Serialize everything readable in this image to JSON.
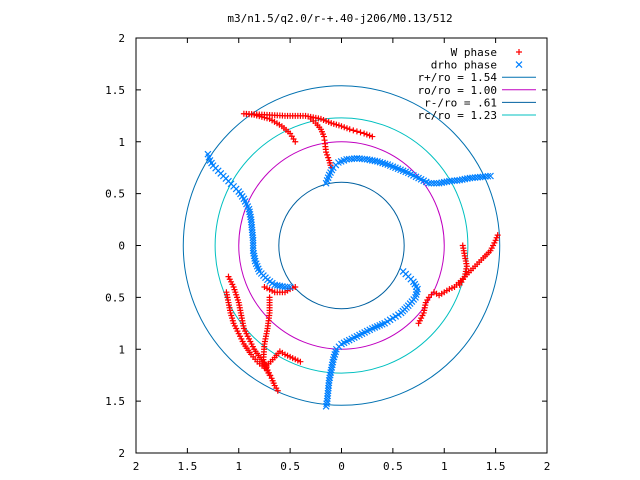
{
  "chart_data": {
    "type": "scatter",
    "title": "m3/n1.5/q2.0/r-+.40-j206/M0.13/512",
    "xlim": [
      -2,
      2
    ],
    "ylim": [
      -2,
      2
    ],
    "x_tick_labels": [
      "2",
      "1.5",
      "1",
      "0.5",
      "0",
      "0.5",
      "1",
      "1.5",
      "2"
    ],
    "y_tick_labels": [
      "2",
      "1.5",
      "1",
      "0.5",
      "0",
      "0.5",
      "1",
      "1.5",
      "2"
    ],
    "tick_values": [
      -2,
      -1.5,
      -1,
      -0.5,
      0,
      0.5,
      1,
      1.5,
      2
    ],
    "grid": false,
    "legend_position": "top-right",
    "colors": {
      "w_phase": "#ff0000",
      "drho_phase": "#0080ff",
      "r_plus": "#0070b0",
      "r_o": "#c000c0",
      "r_minus": "#0060a0",
      "r_c": "#00c0c0"
    },
    "circles": [
      {
        "name": "r+/ro = 1.54",
        "radius": 1.54,
        "color_key": "r_plus"
      },
      {
        "name": "ro/ro = 1.00",
        "radius": 1.0,
        "color_key": "r_o"
      },
      {
        "name": "r-/ro = .61",
        "radius": 0.61,
        "color_key": "r_minus"
      },
      {
        "name": "rc/ro = 1.23",
        "radius": 1.23,
        "color_key": "r_c"
      }
    ],
    "series": [
      {
        "name": "W phase",
        "marker": "plus",
        "color_key": "w_phase",
        "arms": [
          {
            "points": [
              [
                -0.45,
                1.0
              ],
              [
                -0.5,
                1.08
              ],
              [
                -0.58,
                1.15
              ],
              [
                -0.7,
                1.22
              ],
              [
                -0.85,
                1.26
              ],
              [
                -0.95,
                1.27
              ],
              [
                -0.55,
                1.25
              ],
              [
                -0.35,
                1.25
              ],
              [
                -0.2,
                1.22
              ],
              [
                -0.1,
                1.18
              ],
              [
                0.0,
                1.15
              ],
              [
                0.08,
                1.12
              ],
              [
                0.15,
                1.1
              ],
              [
                0.22,
                1.08
              ],
              [
                0.3,
                1.05
              ]
            ]
          },
          {
            "points": [
              [
                -0.1,
                0.75
              ],
              [
                -0.12,
                0.82
              ],
              [
                -0.15,
                0.9
              ],
              [
                -0.16,
                0.98
              ],
              [
                -0.17,
                1.05
              ],
              [
                -0.2,
                1.12
              ],
              [
                -0.25,
                1.18
              ],
              [
                -0.3,
                1.22
              ]
            ]
          },
          {
            "points": [
              [
                0.75,
                -0.75
              ],
              [
                0.8,
                -0.65
              ],
              [
                0.82,
                -0.55
              ],
              [
                0.85,
                -0.5
              ],
              [
                0.9,
                -0.45
              ],
              [
                0.95,
                -0.48
              ],
              [
                1.0,
                -0.45
              ],
              [
                1.05,
                -0.42
              ],
              [
                1.1,
                -0.4
              ],
              [
                1.2,
                -0.3
              ],
              [
                1.3,
                -0.2
              ],
              [
                1.38,
                -0.12
              ],
              [
                1.45,
                -0.05
              ],
              [
                1.5,
                0.05
              ],
              [
                1.52,
                0.1
              ]
            ]
          },
          {
            "points": [
              [
                1.18,
                0.0
              ],
              [
                1.2,
                -0.1
              ],
              [
                1.22,
                -0.2
              ],
              [
                1.2,
                -0.3
              ],
              [
                1.15,
                -0.38
              ]
            ]
          },
          {
            "points": [
              [
                -0.7,
                -0.5
              ],
              [
                -0.7,
                -0.65
              ],
              [
                -0.72,
                -0.8
              ],
              [
                -0.75,
                -0.95
              ],
              [
                -0.76,
                -1.1
              ],
              [
                -0.72,
                -1.2
              ],
              [
                -0.68,
                -1.28
              ],
              [
                -0.65,
                -1.35
              ],
              [
                -0.62,
                -1.4
              ]
            ]
          },
          {
            "points": [
              [
                -1.1,
                -0.3
              ],
              [
                -1.05,
                -0.4
              ],
              [
                -1.0,
                -0.55
              ],
              [
                -0.98,
                -0.65
              ],
              [
                -0.95,
                -0.8
              ],
              [
                -0.9,
                -0.9
              ],
              [
                -0.85,
                -1.0
              ],
              [
                -0.78,
                -1.1
              ],
              [
                -0.7,
                -1.25
              ]
            ]
          },
          {
            "points": [
              [
                -1.12,
                -0.45
              ],
              [
                -1.1,
                -0.55
              ],
              [
                -1.08,
                -0.65
              ],
              [
                -1.05,
                -0.75
              ],
              [
                -1.0,
                -0.85
              ],
              [
                -0.95,
                -0.95
              ],
              [
                -0.88,
                -1.05
              ],
              [
                -0.82,
                -1.12
              ],
              [
                -0.75,
                -1.18
              ],
              [
                -0.65,
                -1.08
              ],
              [
                -0.6,
                -1.02
              ],
              [
                -0.55,
                -1.05
              ],
              [
                -0.4,
                -1.12
              ]
            ]
          },
          {
            "points": [
              [
                -0.75,
                -0.4
              ],
              [
                -0.65,
                -0.45
              ],
              [
                -0.55,
                -0.45
              ],
              [
                -0.5,
                -0.42
              ],
              [
                -0.45,
                -0.4
              ]
            ]
          }
        ]
      },
      {
        "name": "drho phase",
        "marker": "x",
        "color_key": "drho_phase",
        "arms": [
          {
            "points": [
              [
                -1.3,
                0.88
              ],
              [
                -1.28,
                0.82
              ],
              [
                -1.25,
                0.77
              ],
              [
                -1.2,
                0.72
              ],
              [
                -1.15,
                0.67
              ],
              [
                -1.1,
                0.62
              ],
              [
                -1.05,
                0.57
              ],
              [
                -1.0,
                0.52
              ],
              [
                -0.95,
                0.45
              ],
              [
                -0.9,
                0.35
              ],
              [
                -0.88,
                0.25
              ],
              [
                -0.87,
                0.15
              ],
              [
                -0.86,
                0.05
              ],
              [
                -0.86,
                -0.05
              ],
              [
                -0.84,
                -0.15
              ],
              [
                -0.8,
                -0.25
              ],
              [
                -0.72,
                -0.33
              ],
              [
                -0.65,
                -0.38
              ],
              [
                -0.55,
                -0.4
              ],
              [
                -0.5,
                -0.4
              ]
            ]
          },
          {
            "points": [
              [
                -0.15,
                0.6
              ],
              [
                -0.12,
                0.68
              ],
              [
                -0.08,
                0.75
              ],
              [
                -0.03,
                0.8
              ],
              [
                0.05,
                0.83
              ],
              [
                0.15,
                0.84
              ],
              [
                0.25,
                0.83
              ],
              [
                0.35,
                0.81
              ],
              [
                0.45,
                0.78
              ],
              [
                0.55,
                0.74
              ],
              [
                0.65,
                0.7
              ],
              [
                0.75,
                0.65
              ],
              [
                0.85,
                0.6
              ],
              [
                0.95,
                0.6
              ],
              [
                1.05,
                0.62
              ],
              [
                1.15,
                0.63
              ],
              [
                1.25,
                0.65
              ],
              [
                1.35,
                0.66
              ],
              [
                1.45,
                0.67
              ]
            ]
          },
          {
            "points": [
              [
                0.6,
                -0.25
              ],
              [
                0.65,
                -0.3
              ],
              [
                0.7,
                -0.35
              ],
              [
                0.74,
                -0.42
              ],
              [
                0.72,
                -0.5
              ],
              [
                0.65,
                -0.58
              ],
              [
                0.58,
                -0.65
              ],
              [
                0.5,
                -0.7
              ],
              [
                0.42,
                -0.75
              ],
              [
                0.3,
                -0.8
              ],
              [
                0.2,
                -0.85
              ],
              [
                0.1,
                -0.9
              ],
              [
                0.0,
                -0.95
              ],
              [
                -0.05,
                -1.0
              ],
              [
                -0.08,
                -1.1
              ],
              [
                -0.1,
                -1.2
              ],
              [
                -0.12,
                -1.3
              ],
              [
                -0.13,
                -1.4
              ],
              [
                -0.14,
                -1.5
              ],
              [
                -0.15,
                -1.55
              ]
            ]
          }
        ]
      }
    ]
  }
}
